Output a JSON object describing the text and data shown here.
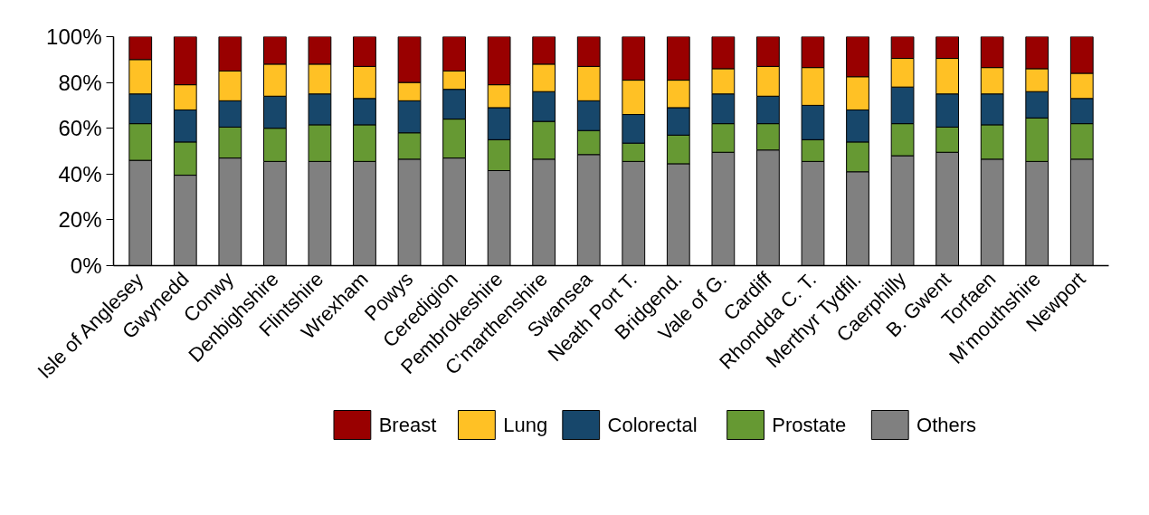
{
  "chart_data": {
    "type": "bar",
    "stacked": true,
    "categories": [
      "Isle of Anglesey",
      "Gwynedd",
      "Conwy",
      "Denbighshire",
      "Flintshire",
      "Wrexham",
      "Powys",
      "Ceredigion",
      "Pembrokeshire",
      "C’marthenshire",
      "Swansea",
      "Neath Port T.",
      "Bridgend.",
      "Vale of G.",
      "Cardiff",
      "Rhondda C. T.",
      "Merthyr Tydfil.",
      "Caerphilly",
      "B. Gwent",
      "Torfaen",
      "M’mouthshire",
      "Newport"
    ],
    "series": [
      {
        "name": "Others",
        "color": "#808080",
        "values": [
          46,
          39.5,
          47,
          45.5,
          45.5,
          45.5,
          46.5,
          47,
          41.5,
          46.5,
          48.5,
          45.5,
          44.5,
          49.5,
          50.5,
          45.5,
          41,
          48,
          49.5,
          46.5,
          45.5,
          46.5
        ]
      },
      {
        "name": "Prostate",
        "color": "#669933",
        "values": [
          16,
          14.5,
          13.5,
          14.5,
          16,
          16,
          11.5,
          17,
          13.5,
          16.5,
          10.5,
          8,
          12.5,
          12.5,
          11.5,
          9.5,
          13,
          14,
          11,
          15,
          19,
          15.5
        ]
      },
      {
        "name": "Colorectal",
        "color": "#17476b",
        "values": [
          13,
          14,
          11.5,
          14,
          13.5,
          11.5,
          14,
          13,
          14,
          13,
          13,
          12.5,
          12,
          13,
          12,
          15,
          14,
          16,
          14.5,
          13.5,
          11.5,
          11
        ]
      },
      {
        "name": "Lung",
        "color": "#ffc125",
        "values": [
          15,
          11,
          13,
          14,
          13,
          14,
          8,
          8,
          10,
          12,
          15,
          15,
          12,
          11,
          13,
          16.5,
          14.5,
          12.5,
          15.5,
          11.5,
          10,
          11
        ]
      },
      {
        "name": "Breast",
        "color": "#990000",
        "values": [
          10,
          21,
          15,
          12,
          12,
          13,
          20,
          15,
          21,
          12,
          13,
          19,
          19,
          14,
          13,
          13.5,
          17.5,
          9.5,
          9.5,
          13.5,
          14,
          16
        ]
      }
    ],
    "ylim": [
      0,
      100
    ],
    "yticks": [
      {
        "value": 0,
        "label": "0%"
      },
      {
        "value": 20,
        "label": "20%"
      },
      {
        "value": 40,
        "label": "40%"
      },
      {
        "value": 60,
        "label": "60%"
      },
      {
        "value": 80,
        "label": "80%"
      },
      {
        "value": 100,
        "label": "100%"
      }
    ],
    "grid": false,
    "legend": "bottom"
  }
}
